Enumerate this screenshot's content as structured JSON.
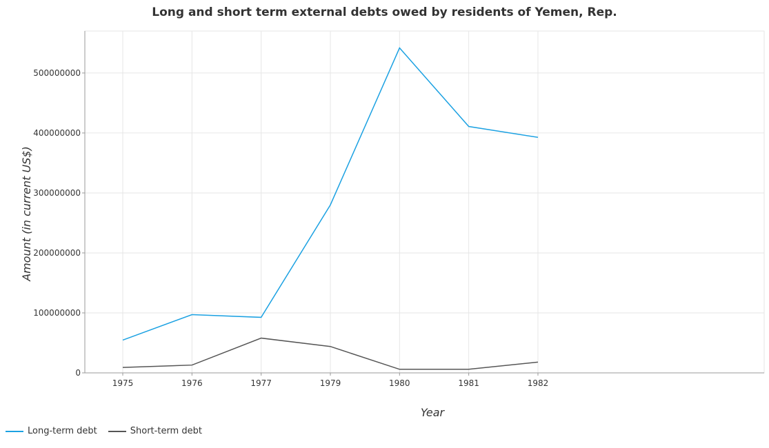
{
  "chart_data": {
    "type": "line",
    "title": "Long and short term external debts owed by residents of Yemen, Rep.",
    "xlabel": "Year",
    "ylabel": "Amount (in current US$)",
    "categories": [
      "1975",
      "1976",
      "1977",
      "1979",
      "1980",
      "1981",
      "1982"
    ],
    "ylim": [
      0,
      570000000
    ],
    "yticks": [
      0,
      100000000,
      200000000,
      300000000,
      400000000,
      500000000
    ],
    "ytick_labels": [
      "0",
      "100000000",
      "200000000",
      "300000000",
      "400000000",
      "500000000"
    ],
    "grid": true,
    "legend_position": "bottom-left",
    "series": [
      {
        "name": "Long-term debt",
        "color": "#1ba1e2",
        "values": [
          54700000,
          97100000,
          92600000,
          280000000,
          541800000,
          410800000,
          392700000
        ]
      },
      {
        "name": "Short-term debt",
        "color": "#555555",
        "values": [
          9000000,
          13000000,
          58000000,
          44000000,
          6000000,
          6000000,
          18000000
        ]
      }
    ]
  }
}
